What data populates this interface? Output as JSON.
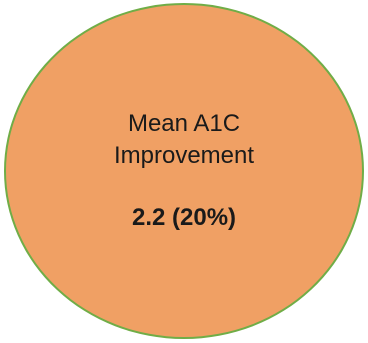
{
  "shape": {
    "fill_color": "#f0a064",
    "border_color": "#70ad47"
  },
  "label_line1": "Mean A1C",
  "label_line2": "Improvement",
  "value": "2.2 (20%)"
}
